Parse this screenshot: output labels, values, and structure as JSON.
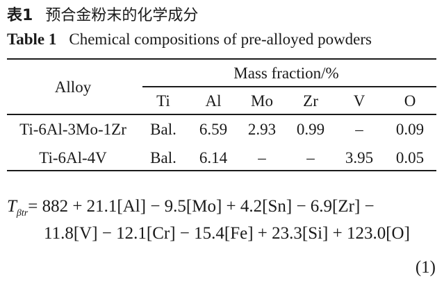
{
  "caption": {
    "cn_label": "表1",
    "cn_text": "预合金粉末的化学成分",
    "en_label": "Table 1",
    "en_text": "Chemical compositions of pre-alloyed powders"
  },
  "table": {
    "row_header": "Alloy",
    "group_header": "Mass fraction/%",
    "columns": [
      "Ti",
      "Al",
      "Mo",
      "Zr",
      "V",
      "O"
    ],
    "rows": [
      {
        "alloy": "Ti-6Al-3Mo-1Zr",
        "values": [
          "Bal.",
          "6.59",
          "2.93",
          "0.99",
          "–",
          "0.09"
        ]
      },
      {
        "alloy": "Ti-6Al-4V",
        "values": [
          "Bal.",
          "6.14",
          "–",
          "–",
          "3.95",
          "0.05"
        ]
      }
    ]
  },
  "equation": {
    "lhs_symbol": "T",
    "lhs_subscript": "βtr",
    "line1": "= 882 + 21.1[Al] − 9.5[Mo] + 4.2[Sn] − 6.9[Zr] −",
    "line2": "11.8[V] − 12.1[Cr] − 15.4[Fe] + 23.3[Si] + 123.0[O]",
    "number": "(1)"
  }
}
